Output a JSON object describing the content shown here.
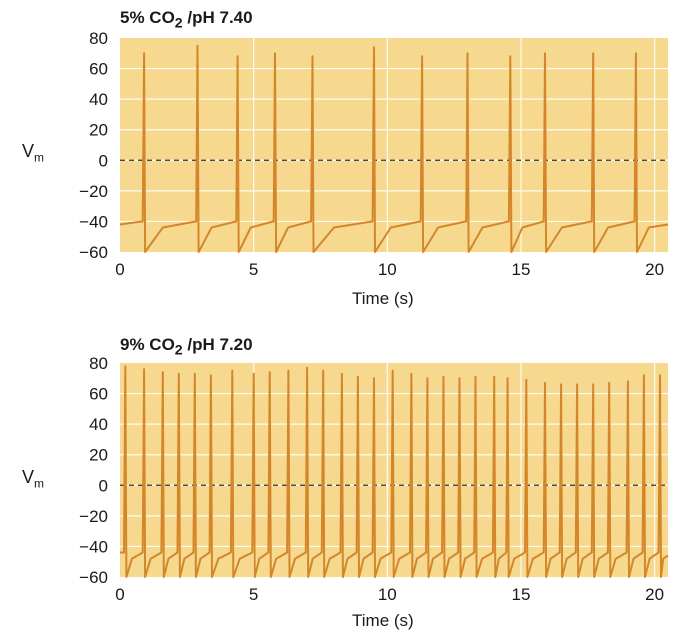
{
  "colors": {
    "plot_background": "#f6d98f",
    "trace": "#d4872a",
    "grid": "#fffaf0",
    "zero_line": "#333333"
  },
  "chart_data": [
    {
      "type": "line",
      "title": "5% CO₂ /pH 7.40",
      "title_main": "5% CO",
      "title_sub": "2",
      "title_rest": " /pH 7.40",
      "xlabel": "Time (s)",
      "ylabel_main": "V",
      "ylabel_sub": "m",
      "xlim": [
        0,
        20.5
      ],
      "ylim": [
        -60,
        80
      ],
      "xticks": [
        0,
        5,
        10,
        15,
        20
      ],
      "yticks": [
        80,
        60,
        40,
        20,
        0,
        -20,
        -40,
        -60
      ],
      "ytick_labels": [
        "80",
        "60",
        "40",
        "20",
        "0",
        "−20",
        "−40",
        "−60"
      ],
      "grid": true,
      "zero_line": "dashed",
      "series": [
        {
          "spike_times": [
            0.9,
            2.9,
            4.4,
            5.8,
            7.2,
            9.5,
            11.3,
            13.0,
            14.6,
            15.9,
            17.7,
            19.3
          ],
          "spike_peaks": [
            70,
            75,
            68,
            70,
            68,
            74,
            68,
            70,
            68,
            70,
            70,
            70
          ],
          "baseline_start": -42,
          "reset_value": -60,
          "threshold": -40
        }
      ]
    },
    {
      "type": "line",
      "title": "9% CO₂ /pH 7.20",
      "title_main": "9% CO",
      "title_sub": "2",
      "title_rest": " /pH 7.20",
      "xlabel": "Time (s)",
      "ylabel_main": "V",
      "ylabel_sub": "m",
      "xlim": [
        0,
        20.5
      ],
      "ylim": [
        -60,
        80
      ],
      "xticks": [
        0,
        5,
        10,
        15,
        20
      ],
      "yticks": [
        80,
        60,
        40,
        20,
        0,
        -20,
        -40,
        -60
      ],
      "ytick_labels": [
        "80",
        "60",
        "40",
        "20",
        "0",
        "−20",
        "−40",
        "−60"
      ],
      "grid": true,
      "zero_line": "dashed",
      "series": [
        {
          "spike_times": [
            0.2,
            0.9,
            1.6,
            2.2,
            2.8,
            3.4,
            4.2,
            5.0,
            5.6,
            6.3,
            7.0,
            7.6,
            8.3,
            8.9,
            9.5,
            10.2,
            10.9,
            11.5,
            12.1,
            12.7,
            13.3,
            14.0,
            14.5,
            15.2,
            15.9,
            16.5,
            17.1,
            17.7,
            18.3,
            19.0,
            19.6,
            20.2
          ],
          "spike_peaks": [
            78,
            76,
            74,
            73,
            73,
            72,
            75,
            73,
            74,
            75,
            77,
            75,
            73,
            71,
            70,
            75,
            73,
            70,
            71,
            70,
            71,
            71,
            70,
            69,
            67,
            66,
            66,
            66,
            67,
            68,
            72,
            72
          ],
          "baseline_start": -44,
          "reset_value": -60,
          "threshold": -44
        }
      ]
    }
  ]
}
